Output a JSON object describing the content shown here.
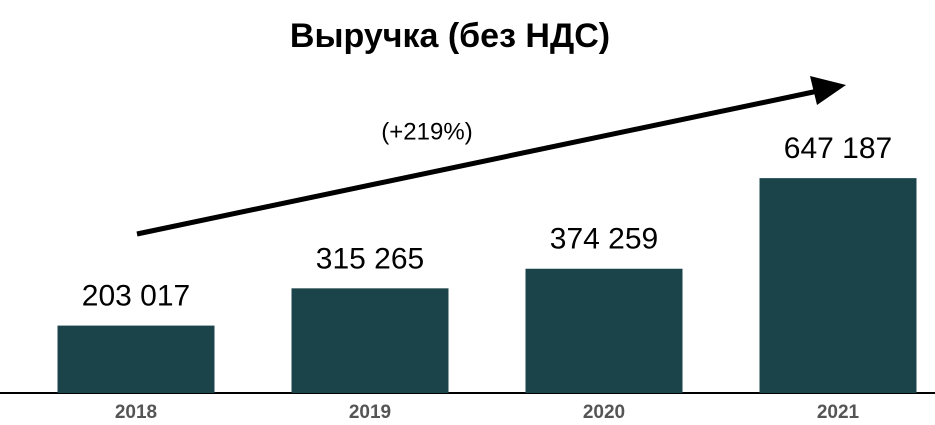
{
  "chart_data": {
    "type": "bar",
    "title": "Выручка (без НДС)",
    "categories": [
      "2018",
      "2019",
      "2020",
      "2021"
    ],
    "values": [
      203017,
      315265,
      374259,
      647187
    ],
    "value_labels": [
      "203 017",
      "315 265",
      "374 259",
      "647 187"
    ],
    "color": "#1a4449",
    "annotation": "(+219%)",
    "ylim": [
      0,
      1000000
    ]
  }
}
